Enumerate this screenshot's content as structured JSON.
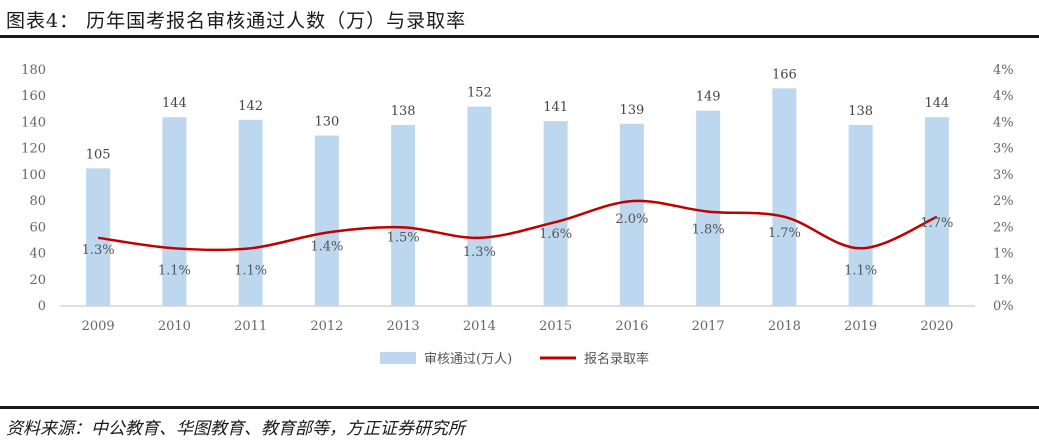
{
  "title": "图表4： 历年国考报名审核通过人数（万）与录取率",
  "source": "资料来源：中公教育、华图教育、教育部等，方正证券研究所",
  "chart_data": {
    "type": "bar",
    "categories": [
      "2009",
      "2010",
      "2011",
      "2012",
      "2013",
      "2014",
      "2015",
      "2016",
      "2017",
      "2018",
      "2019",
      "2020"
    ],
    "series": [
      {
        "name": "审核通过(万人)",
        "type": "bar",
        "axis": "left",
        "values": [
          105,
          144,
          142,
          130,
          138,
          152,
          141,
          139,
          149,
          166,
          138,
          144
        ],
        "labels": [
          "105",
          "144",
          "142",
          "130",
          "138",
          "152",
          "141",
          "139",
          "149",
          "166",
          "138",
          "144"
        ],
        "color": "#bdd7ee"
      },
      {
        "name": "报名录取率",
        "type": "line",
        "axis": "right",
        "values": [
          1.3,
          1.1,
          1.1,
          1.4,
          1.5,
          1.3,
          1.6,
          2.0,
          1.8,
          1.7,
          1.1,
          1.7
        ],
        "labels": [
          "1.3%",
          "1.1%",
          "1.1%",
          "1.4%",
          "1.5%",
          "1.3%",
          "1.6%",
          "2.0%",
          "1.8%",
          "1.7%",
          "1.1%",
          "1.7%"
        ],
        "color": "#c00000"
      }
    ],
    "y_left": {
      "ylim": [
        0,
        180
      ],
      "ticks": [
        "0",
        "20",
        "40",
        "60",
        "80",
        "100",
        "120",
        "140",
        "160",
        "180"
      ]
    },
    "y_right": {
      "ylim": [
        0,
        4.5
      ],
      "ticks": [
        "0%",
        "1%",
        "1%",
        "2%",
        "2%",
        "3%",
        "3%",
        "4%",
        "4%",
        "4%"
      ]
    },
    "legend": {
      "position": "bottom"
    },
    "grid": false
  }
}
